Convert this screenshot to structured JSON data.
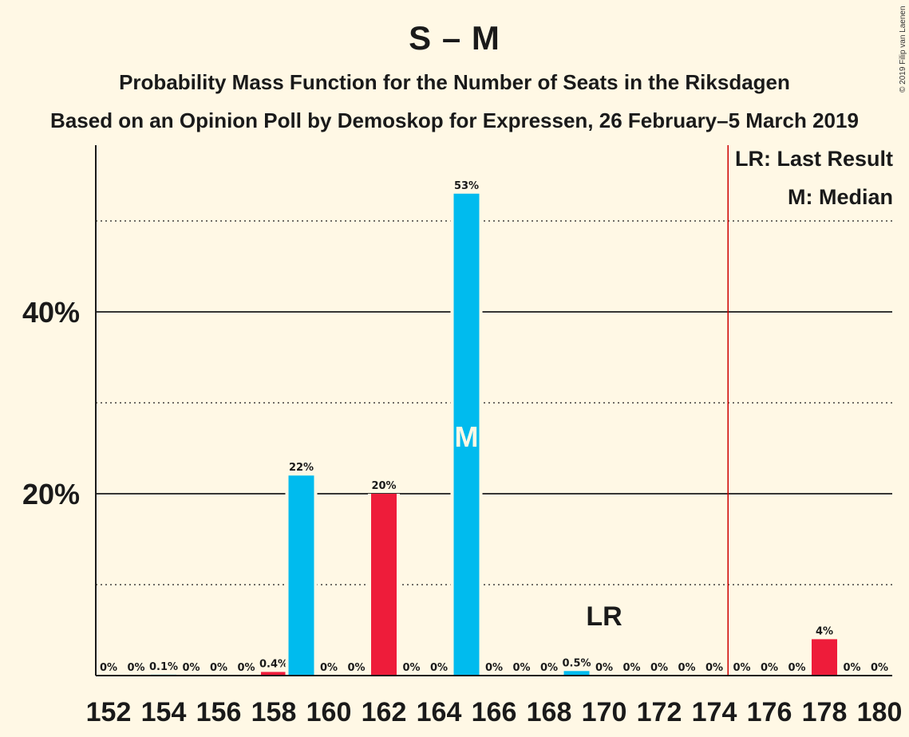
{
  "header": {
    "title": "S – M",
    "subtitle1": "Probability Mass Function for the Number of Seats in the Riksdagen",
    "subtitle2": "Based on an Opinion Poll by Demoskop for Expressen, 26 February–5 March 2019",
    "copyright": "© 2019 Filip van Laenen"
  },
  "legend": {
    "lr": "LR: Last Result",
    "median": "M: Median"
  },
  "colors": {
    "background": "#FFF8E5",
    "s_color": "#EE1C3A",
    "m_color": "#00BBEE",
    "last_result_line": "#CC0000"
  },
  "chart_data": {
    "type": "bar",
    "x": [
      152,
      153,
      154,
      155,
      156,
      157,
      158,
      159,
      160,
      161,
      162,
      163,
      164,
      165,
      166,
      167,
      168,
      169,
      170,
      171,
      172,
      173,
      174,
      175,
      176,
      177,
      178,
      179,
      180
    ],
    "values": [
      0,
      0,
      0.1,
      0,
      0,
      0,
      0.4,
      22,
      0,
      0,
      20,
      0,
      0,
      53,
      0,
      0,
      0,
      0.5,
      0,
      0,
      0,
      0,
      0,
      0,
      0,
      0,
      4,
      0,
      0
    ],
    "labels": [
      "0%",
      "0%",
      "0.1%",
      "0%",
      "0%",
      "0%",
      "0.4%",
      "22%",
      "0%",
      "0%",
      "20%",
      "0%",
      "0%",
      "53%",
      "0%",
      "0%",
      "0%",
      "0.5%",
      "0%",
      "0%",
      "0%",
      "0%",
      "0%",
      "0%",
      "0%",
      "0%",
      "4%",
      "0%",
      "0%"
    ],
    "bar_color_keys": [
      "m",
      "m",
      "m",
      "m",
      "m",
      "m",
      "s",
      "m",
      "m",
      "m",
      "s",
      "m",
      "m",
      "m",
      "m",
      "m",
      "m",
      "m",
      "m",
      "m",
      "m",
      "m",
      "m",
      "m",
      "m",
      "m",
      "s",
      "m",
      "m"
    ],
    "xticks": [
      152,
      154,
      156,
      158,
      160,
      162,
      164,
      166,
      168,
      170,
      172,
      174,
      176,
      178,
      180
    ],
    "ytick_labels": [
      {
        "value": 20,
        "label": "20%"
      },
      {
        "value": 40,
        "label": "40%"
      }
    ],
    "gridlines_solid": [
      20,
      40
    ],
    "gridlines_dotted": [
      10,
      30,
      50
    ],
    "ylim": [
      0,
      58
    ],
    "median_seat": 165,
    "median_label": "M",
    "last_result_seat": 175,
    "last_result_label": "LR",
    "lr_label_seat": 170
  }
}
